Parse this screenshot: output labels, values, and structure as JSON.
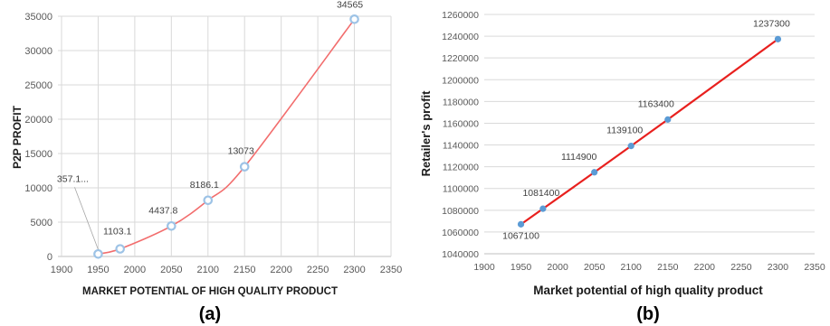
{
  "chart_data": [
    {
      "panel_label": "(a)",
      "type": "line",
      "xlabel": "MARKET POTENTIAL OF HIGH QUALITY PRODUCT",
      "ylabel": "P2P PROFIT",
      "xlim": [
        1900,
        2350
      ],
      "ylim": [
        0,
        35000
      ],
      "xticks": [
        "1900",
        "1950",
        "2000",
        "2050",
        "2100",
        "2150",
        "2200",
        "2250",
        "2300",
        "2350"
      ],
      "yticks": [
        "0",
        "5000",
        "10000",
        "15000",
        "20000",
        "25000",
        "30000",
        "35000"
      ],
      "grid": "both",
      "line_color": "#f26d6d",
      "marker_color": "#9dc3e6",
      "series": [
        {
          "x": [
            1950,
            1980,
            2050,
            2100,
            2150,
            2300
          ],
          "y": [
            357.1,
            1103.1,
            4437.8,
            8186.1,
            13073,
            34565
          ],
          "labels": [
            "357.1...",
            "1103.1",
            "4437.8",
            "8186.1",
            "13073",
            "34565"
          ]
        }
      ]
    },
    {
      "panel_label": "(b)",
      "type": "line",
      "xlabel": "Market potential of high quality product",
      "ylabel": "Retailer's profit",
      "xlim": [
        1900,
        2350
      ],
      "ylim": [
        1040000,
        1260000
      ],
      "xticks": [
        "1900",
        "1950",
        "2000",
        "2050",
        "2100",
        "2150",
        "2200",
        "2250",
        "2300",
        "2350"
      ],
      "yticks": [
        "1040000",
        "1060000",
        "1080000",
        "1100000",
        "1120000",
        "1140000",
        "1160000",
        "1180000",
        "1200000",
        "1220000",
        "1240000",
        "1260000"
      ],
      "grid": "horizontal",
      "line_color": "#e8201e",
      "marker_color": "#5b9bd5",
      "series": [
        {
          "x": [
            1950,
            1980,
            2050,
            2100,
            2150,
            2300
          ],
          "y": [
            1067100,
            1081400,
            1114900,
            1139100,
            1163400,
            1237300
          ],
          "labels": [
            "1067100",
            "1081400",
            "1114900",
            "1139100",
            "1163400",
            "1237300"
          ]
        }
      ]
    }
  ]
}
